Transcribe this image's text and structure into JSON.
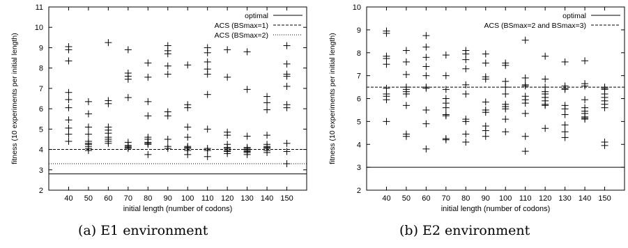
{
  "colors": {
    "ink": "#000000",
    "background": "#ffffff"
  },
  "captions": [
    "(a) E1 environment",
    "(b) E2 environment"
  ],
  "chart_data": [
    {
      "type": "scatter",
      "marker": "plus",
      "xlabel": "initial length (number of codons)",
      "ylabel": "fitness (10 experiments per initial length)",
      "categories": [
        40,
        50,
        60,
        70,
        80,
        90,
        100,
        110,
        120,
        130,
        140,
        150
      ],
      "ylim": [
        2,
        11
      ],
      "yticks": [
        2,
        3,
        4,
        5,
        6,
        7,
        8,
        9,
        10,
        11
      ],
      "legend_position": "top-right",
      "reference_lines": [
        {
          "name": "optimal",
          "value": 2.8,
          "style": "solid"
        },
        {
          "name": "ACS (BSmax=1)",
          "value": 4.0,
          "style": "dashed"
        },
        {
          "name": "ACS (BSmax=2)",
          "value": 3.3,
          "style": "dotted"
        }
      ],
      "series": [
        {
          "x": 40,
          "values": [
            9.05,
            8.9,
            8.35,
            6.8,
            6.45,
            6.05,
            5.45,
            5.05,
            4.75,
            4.4
          ]
        },
        {
          "x": 50,
          "values": [
            6.35,
            5.75,
            5.1,
            4.75,
            4.4,
            4.3,
            4.25,
            4.15,
            4.05,
            3.95
          ]
        },
        {
          "x": 60,
          "values": [
            9.25,
            6.4,
            6.25,
            5.1,
            4.95,
            4.8,
            4.6,
            4.5,
            4.4,
            4.3
          ]
        },
        {
          "x": 70,
          "values": [
            8.9,
            7.75,
            7.6,
            7.45,
            6.55,
            4.35,
            4.2,
            4.15,
            4.1,
            4.05
          ]
        },
        {
          "x": 80,
          "values": [
            8.25,
            7.55,
            6.35,
            5.65,
            4.6,
            4.5,
            4.35,
            4.3,
            4.25,
            3.75
          ]
        },
        {
          "x": 90,
          "values": [
            9.1,
            8.85,
            8.7,
            8.1,
            7.7,
            5.85,
            5.65,
            4.5,
            4.15,
            4.05
          ]
        },
        {
          "x": 100,
          "values": [
            8.15,
            6.2,
            6.05,
            5.1,
            4.6,
            4.15,
            4.1,
            4.05,
            3.95,
            3.75
          ]
        },
        {
          "x": 110,
          "values": [
            9.0,
            8.75,
            8.3,
            7.95,
            7.7,
            6.7,
            5.0,
            4.05,
            3.95,
            3.65
          ]
        },
        {
          "x": 120,
          "values": [
            8.9,
            7.55,
            4.85,
            4.7,
            4.25,
            4.1,
            4.05,
            3.95,
            3.9,
            3.8
          ]
        },
        {
          "x": 130,
          "values": [
            8.8,
            6.95,
            4.65,
            4.1,
            4.05,
            4.0,
            3.95,
            3.9,
            3.85,
            3.75
          ]
        },
        {
          "x": 140,
          "values": [
            6.6,
            6.3,
            5.95,
            4.7,
            4.25,
            4.15,
            4.1,
            4.05,
            3.95,
            3.85
          ]
        },
        {
          "x": 150,
          "values": [
            9.1,
            8.2,
            7.7,
            7.6,
            7.1,
            6.2,
            6.05,
            4.3,
            3.9,
            3.3
          ]
        }
      ]
    },
    {
      "type": "scatter",
      "marker": "plus",
      "xlabel": "initial length (number of codons)",
      "ylabel": "fitness (10 experiments per initial length)",
      "categories": [
        40,
        50,
        60,
        70,
        80,
        90,
        100,
        110,
        120,
        130,
        140,
        150
      ],
      "ylim": [
        2,
        10
      ],
      "yticks": [
        2,
        3,
        4,
        5,
        6,
        7,
        8,
        9,
        10
      ],
      "legend_position": "top-right",
      "reference_lines": [
        {
          "name": "optimal",
          "value": 3.0,
          "style": "solid"
        },
        {
          "name": "ACS (BSmax=2 and BSmax=3)",
          "value": 6.5,
          "style": "dashed"
        }
      ],
      "series": [
        {
          "x": 40,
          "values": [
            8.95,
            8.85,
            7.85,
            7.75,
            7.5,
            6.45,
            6.2,
            6.1,
            5.95,
            5.0
          ]
        },
        {
          "x": 50,
          "values": [
            8.1,
            7.6,
            7.05,
            6.5,
            6.4,
            6.3,
            6.2,
            5.7,
            4.45,
            4.35
          ]
        },
        {
          "x": 60,
          "values": [
            8.75,
            8.25,
            7.8,
            7.4,
            7.0,
            6.5,
            6.45,
            5.5,
            4.9,
            3.8
          ]
        },
        {
          "x": 70,
          "values": [
            7.9,
            7.0,
            6.4,
            6.0,
            5.8,
            5.6,
            5.3,
            5.25,
            4.25,
            4.2
          ]
        },
        {
          "x": 80,
          "values": [
            8.1,
            7.95,
            7.7,
            7.3,
            6.6,
            6.2,
            5.1,
            5.0,
            4.45,
            4.1
          ]
        },
        {
          "x": 90,
          "values": [
            7.95,
            7.55,
            6.95,
            6.85,
            5.85,
            5.5,
            5.4,
            4.8,
            4.6,
            4.35
          ]
        },
        {
          "x": 100,
          "values": [
            7.55,
            7.45,
            6.75,
            6.5,
            6.2,
            5.75,
            5.65,
            5.55,
            5.1,
            4.55
          ]
        },
        {
          "x": 110,
          "values": [
            8.55,
            6.9,
            6.6,
            6.55,
            6.1,
            5.95,
            5.8,
            5.35,
            4.35,
            3.7
          ]
        },
        {
          "x": 120,
          "values": [
            7.85,
            6.85,
            6.5,
            6.3,
            6.2,
            6.05,
            5.9,
            5.75,
            5.7,
            4.7
          ]
        },
        {
          "x": 130,
          "values": [
            7.6,
            6.55,
            6.45,
            6.4,
            5.7,
            5.55,
            5.3,
            4.85,
            4.55,
            4.3
          ]
        },
        {
          "x": 140,
          "values": [
            7.65,
            6.65,
            6.55,
            5.95,
            5.6,
            5.45,
            5.35,
            5.2,
            5.15,
            5.1
          ]
        },
        {
          "x": 150,
          "values": [
            6.5,
            6.45,
            6.4,
            6.2,
            6.05,
            5.9,
            5.75,
            5.6,
            4.1,
            3.95
          ]
        }
      ]
    }
  ]
}
